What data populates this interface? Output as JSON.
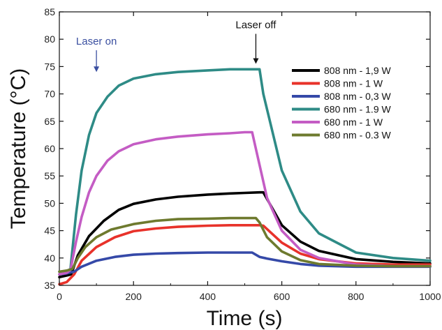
{
  "chart_data": {
    "type": "line",
    "title": "",
    "xlabel": "Time (s)",
    "ylabel": "Temperature (°C)",
    "xlim": [
      0,
      1000
    ],
    "ylim": [
      35,
      85
    ],
    "x_ticks": [
      0,
      200,
      400,
      600,
      800,
      1000
    ],
    "y_ticks": [
      35,
      40,
      45,
      50,
      55,
      60,
      65,
      70,
      75,
      80,
      85
    ],
    "grid": false,
    "legend_position": "right",
    "annotations": [
      {
        "text": "Laser on",
        "x": 100,
        "y": 79,
        "arrow_to": [
          100,
          74
        ],
        "color": "#3a4fa0"
      },
      {
        "text": "Laser off",
        "x": 530,
        "y": 82,
        "arrow_to": [
          530,
          75.5
        ],
        "color": "#111111"
      }
    ],
    "series": [
      {
        "name": "808 nm - 1,9 W",
        "color": "#000000",
        "x": [
          0,
          20,
          32,
          50,
          80,
          120,
          160,
          200,
          260,
          320,
          400,
          460,
          500,
          540,
          550,
          600,
          650,
          700,
          800,
          900,
          1000
        ],
        "y": [
          36.5,
          36.8,
          37.0,
          40.5,
          44.0,
          46.8,
          48.8,
          49.9,
          50.7,
          51.2,
          51.6,
          51.8,
          51.9,
          52.0,
          52.0,
          46.0,
          43.0,
          41.3,
          39.8,
          39.3,
          39.0
        ]
      },
      {
        "name": "808 nm - 1 W",
        "color": "#e8322a",
        "x": [
          0,
          20,
          40,
          60,
          100,
          150,
          200,
          260,
          320,
          400,
          460,
          500,
          540,
          550,
          600,
          650,
          700,
          800,
          900,
          1000
        ],
        "y": [
          35.2,
          35.6,
          37.0,
          39.5,
          42.0,
          43.8,
          44.9,
          45.4,
          45.7,
          45.9,
          46.0,
          46.0,
          46.0,
          45.9,
          42.8,
          40.8,
          39.8,
          39.0,
          38.8,
          38.8
        ]
      },
      {
        "name": "808 nm - 0,3 W",
        "color": "#3549a8",
        "x": [
          0,
          20,
          40,
          60,
          100,
          150,
          200,
          260,
          320,
          400,
          460,
          500,
          520,
          540,
          560,
          600,
          650,
          700,
          800,
          900,
          1000
        ],
        "y": [
          37.0,
          37.2,
          37.5,
          38.4,
          39.5,
          40.2,
          40.6,
          40.8,
          40.9,
          41.0,
          41.0,
          41.0,
          41.0,
          40.2,
          39.9,
          39.4,
          38.9,
          38.6,
          38.4,
          38.4,
          38.4
        ]
      },
      {
        "name": "680 nm - 1.9 W",
        "color": "#2e8b86",
        "x": [
          0,
          20,
          30,
          45,
          60,
          80,
          100,
          130,
          160,
          200,
          260,
          320,
          400,
          460,
          500,
          540,
          550,
          600,
          650,
          700,
          800,
          900,
          1000
        ],
        "y": [
          37.5,
          37.6,
          38.0,
          48.0,
          56.0,
          62.5,
          66.5,
          69.5,
          71.5,
          72.8,
          73.6,
          74.0,
          74.3,
          74.5,
          74.5,
          74.5,
          70.0,
          56.0,
          48.5,
          44.5,
          41.0,
          40.0,
          39.5
        ]
      },
      {
        "name": "680 nm - 1 W",
        "color": "#c45cc4",
        "x": [
          0,
          20,
          30,
          45,
          60,
          80,
          100,
          130,
          160,
          200,
          260,
          320,
          400,
          460,
          500,
          520,
          530,
          560,
          600,
          650,
          700,
          800,
          900,
          1000
        ],
        "y": [
          37.0,
          37.3,
          37.8,
          43.0,
          47.5,
          52.0,
          55.0,
          57.8,
          59.5,
          60.8,
          61.7,
          62.2,
          62.6,
          62.8,
          63.0,
          63.0,
          60.0,
          51.0,
          45.0,
          41.5,
          40.0,
          38.8,
          38.5,
          38.5
        ]
      },
      {
        "name": "680 nm - 0.3 W",
        "color": "#6e7a2e",
        "x": [
          0,
          20,
          35,
          50,
          70,
          100,
          140,
          200,
          260,
          320,
          400,
          460,
          500,
          530,
          540,
          560,
          600,
          650,
          700,
          800,
          900,
          1000
        ],
        "y": [
          37.5,
          37.7,
          38.0,
          40.0,
          42.0,
          43.8,
          45.2,
          46.2,
          46.8,
          47.1,
          47.2,
          47.3,
          47.3,
          47.3,
          46.5,
          43.8,
          41.2,
          39.6,
          38.9,
          38.6,
          38.5,
          38.5
        ]
      }
    ]
  }
}
